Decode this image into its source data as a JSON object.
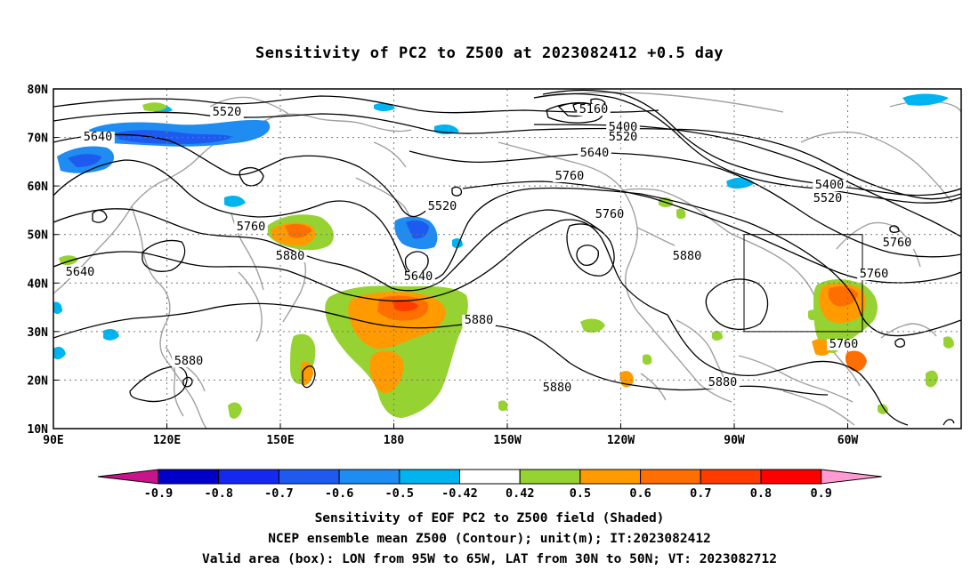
{
  "title": "Sensitivity of PC2 to Z500 at 2023082412 +0.5 day",
  "map": {
    "lat_labels": [
      "80N",
      "70N",
      "60N",
      "50N",
      "40N",
      "30N",
      "20N",
      "10N"
    ],
    "lon_labels": [
      "90E",
      "120E",
      "150E",
      "180",
      "150W",
      "120W",
      "90W",
      "60W"
    ],
    "contour_labels": [
      "5520",
      "5640",
      "5160",
      "5400",
      "5520",
      "5640",
      "5760",
      "5400",
      "5520",
      "5760",
      "5520",
      "5760",
      "5880",
      "5640",
      "5880",
      "5880",
      "5880",
      "5880",
      "5880",
      "5760",
      "5760",
      "5640",
      "5760",
      "5880"
    ],
    "valid_box": {
      "lon_range": [
        "95W",
        "65W"
      ],
      "lat_range": [
        "30N",
        "50N"
      ]
    }
  },
  "colorbar": {
    "labels": [
      "-0.9",
      "-0.8",
      "-0.7",
      "-0.6",
      "-0.5",
      "-0.42",
      "0.42",
      "0.5",
      "0.6",
      "0.7",
      "0.8",
      "0.9"
    ],
    "colors": [
      "#0000c8",
      "#1428f0",
      "#1e5af0",
      "#1e8cf0",
      "#00b4f0",
      "#ffffff",
      "#96d232",
      "#ff9b00",
      "#ff6e00",
      "#ff3c00",
      "#ff0000"
    ],
    "low_arrow_color": "#c8148c",
    "high_arrow_color": "#ff9bd2"
  },
  "captions": [
    "Sensitivity of EOF PC2 to Z500 field (Shaded)",
    "NCEP ensemble mean Z500 (Contour); unit(m); IT:2023082412",
    "Valid area (box): LON from 95W to 65W, LAT from 30N to 50N; VT: 2023082712"
  ]
}
